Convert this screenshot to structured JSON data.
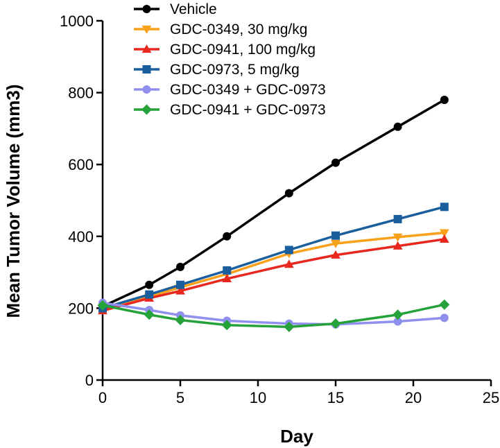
{
  "chart_data": {
    "type": "line",
    "title": "",
    "xlabel": "Day",
    "ylabel": "Mean Tumor Volume (mm3)",
    "xlim": [
      0,
      25
    ],
    "ylim": [
      0,
      1000
    ],
    "xticks": [
      0,
      5,
      10,
      15,
      20,
      25
    ],
    "yticks": [
      0,
      200,
      400,
      600,
      800,
      1000
    ],
    "grid": false,
    "legend_position": "top",
    "x": [
      0,
      3,
      5,
      8,
      12,
      15,
      19,
      22
    ],
    "series": [
      {
        "name": "Vehicle",
        "color": "#000000",
        "marker": "circle",
        "values": [
          205,
          265,
          315,
          400,
          520,
          605,
          705,
          780
        ]
      },
      {
        "name": "GDC-0349, 30 mg/kg",
        "color": "#f9a11b",
        "marker": "triangle-down",
        "values": [
          195,
          232,
          258,
          295,
          352,
          380,
          398,
          410
        ]
      },
      {
        "name": "GDC-0941, 100 mg/kg",
        "color": "#e8281e",
        "marker": "triangle-up",
        "values": [
          193,
          228,
          248,
          282,
          322,
          348,
          373,
          392
        ]
      },
      {
        "name": "GDC-0973, 5 mg/kg",
        "color": "#1a5e9e",
        "marker": "square",
        "values": [
          200,
          238,
          265,
          305,
          362,
          402,
          448,
          482
        ]
      },
      {
        "name": "GDC-0349 + GDC-0973",
        "color": "#8f90ee",
        "marker": "circle",
        "values": [
          215,
          195,
          180,
          165,
          157,
          155,
          163,
          173
        ]
      },
      {
        "name": "GDC-0941 + GDC-0973",
        "color": "#26a23a",
        "marker": "diamond",
        "values": [
          208,
          182,
          167,
          153,
          148,
          157,
          182,
          210
        ]
      }
    ]
  }
}
